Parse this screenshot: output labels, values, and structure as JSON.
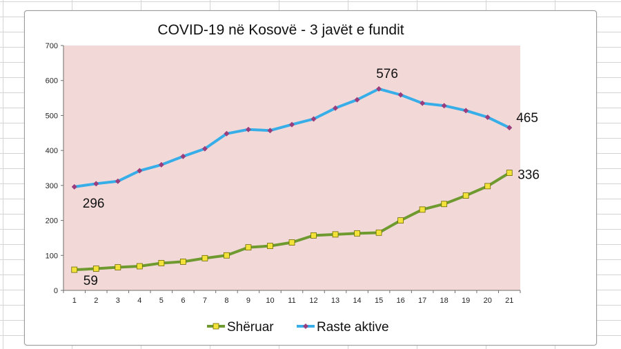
{
  "chart_data": {
    "type": "line",
    "title": "COVID-19 në Kosovë - 3 javët e fundit",
    "xlabel": "",
    "ylabel": "",
    "x": [
      1,
      2,
      3,
      4,
      5,
      6,
      7,
      8,
      9,
      10,
      11,
      12,
      13,
      14,
      15,
      16,
      17,
      18,
      19,
      20,
      21
    ],
    "ylim": [
      0,
      700
    ],
    "yticks": [
      0,
      100,
      200,
      300,
      400,
      500,
      600,
      700
    ],
    "grid": false,
    "plot_background": "#f2d9d8",
    "legend_position": "bottom",
    "series": [
      {
        "name": "Shëruar",
        "line_color": "#6f9a2f",
        "marker": "square",
        "marker_color": "#f2e23a",
        "values": [
          59,
          62,
          66,
          69,
          78,
          82,
          92,
          100,
          123,
          127,
          137,
          157,
          160,
          163,
          165,
          200,
          231,
          247,
          271,
          298,
          336
        ]
      },
      {
        "name": "Raste aktive",
        "line_color": "#38aee8",
        "marker": "diamond",
        "marker_color": "#9a3d7c",
        "values": [
          296,
          305,
          312,
          342,
          359,
          383,
          405,
          448,
          460,
          457,
          474,
          490,
          521,
          545,
          576,
          559,
          535,
          528,
          514,
          495,
          465
        ]
      }
    ],
    "data_labels": [
      {
        "series": "Shëruar",
        "x": 1,
        "text": "59"
      },
      {
        "series": "Shëruar",
        "x": 21,
        "text": "336"
      },
      {
        "series": "Raste aktive",
        "x": 1,
        "text": "296"
      },
      {
        "series": "Raste aktive",
        "x": 15,
        "text": "576"
      },
      {
        "series": "Raste aktive",
        "x": 21,
        "text": "465"
      }
    ]
  }
}
